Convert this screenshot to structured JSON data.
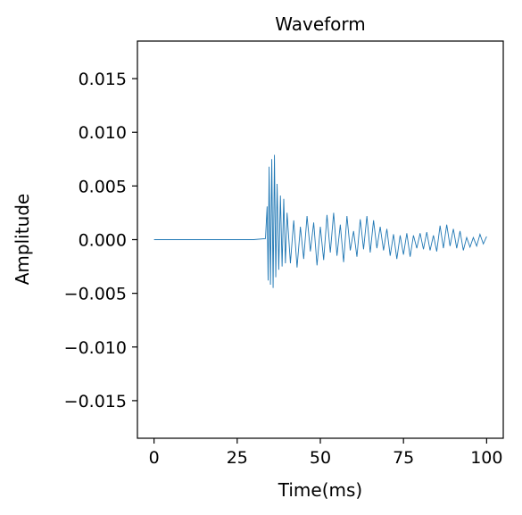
{
  "chart_data": {
    "type": "line",
    "title": "Waveform",
    "xlabel": "Time(ms)",
    "ylabel": "Amplitude",
    "xlim": [
      -5,
      105
    ],
    "ylim": [
      -0.0185,
      0.0185
    ],
    "x_ticks": [
      0,
      25,
      50,
      75,
      100
    ],
    "x_tick_labels": [
      "0",
      "25",
      "50",
      "75",
      "100"
    ],
    "y_ticks": [
      0.015,
      0.01,
      0.005,
      0.0,
      -0.005,
      -0.01,
      -0.015
    ],
    "y_tick_labels": [
      "0.015",
      "0.010",
      "0.005",
      "0.000",
      "−0.005",
      "−0.010",
      "−0.015"
    ],
    "grid": false,
    "line_color": "#1f77b4",
    "series": [
      {
        "x": [
          0,
          5,
          10,
          15,
          20,
          25,
          30,
          33.5,
          34.0,
          34.3,
          34.6,
          35.0,
          35.4,
          35.8,
          36.2,
          36.6,
          37.0,
          37.5,
          38.0,
          38.5,
          39.0,
          39.5,
          40.0,
          41.0,
          42.0,
          43.0,
          44.0,
          45.0,
          46.0,
          47.0,
          48.0,
          49.0,
          50.0,
          51.0,
          52.0,
          53.0,
          54.0,
          55.0,
          56.0,
          57.0,
          58.0,
          59.0,
          60.0,
          61.0,
          62.0,
          63.0,
          64.0,
          65.0,
          66.0,
          67.0,
          68.0,
          69.0,
          70.0,
          71.0,
          72.0,
          73.0,
          74.0,
          75.0,
          76.0,
          77.0,
          78.0,
          79.0,
          80.0,
          81.0,
          82.0,
          83.0,
          84.0,
          85.0,
          86.0,
          87.0,
          88.0,
          89.0,
          90.0,
          91.0,
          92.0,
          93.0,
          94.0,
          95.0,
          96.0,
          97.0,
          98.0,
          99.0,
          100.0
        ],
        "y": [
          0.0,
          0.0,
          0.0,
          0.0,
          0.0,
          0.0,
          0.0,
          0.0001,
          0.0031,
          -0.0038,
          0.0068,
          -0.0042,
          0.0075,
          -0.0045,
          0.0079,
          -0.0035,
          0.0052,
          -0.0028,
          0.0041,
          -0.0025,
          0.0038,
          -0.0022,
          0.0025,
          -0.0022,
          0.0018,
          -0.0026,
          0.0012,
          -0.0018,
          0.0022,
          -0.0011,
          0.0016,
          -0.0024,
          0.0012,
          -0.0019,
          0.0023,
          -0.0012,
          0.0025,
          -0.0015,
          0.0014,
          -0.0021,
          0.0022,
          -0.001,
          0.0008,
          -0.0016,
          0.0019,
          -0.0009,
          0.0022,
          -0.0012,
          0.0018,
          -0.0008,
          0.0012,
          -0.001,
          0.001,
          -0.0015,
          0.0005,
          -0.0018,
          0.0004,
          -0.0014,
          0.0006,
          -0.0016,
          0.0004,
          -0.0008,
          0.0006,
          -0.0009,
          0.0007,
          -0.001,
          0.0004,
          -0.0011,
          0.0013,
          -0.0008,
          0.0014,
          -0.0006,
          0.001,
          -0.0008,
          0.0008,
          -0.001,
          0.0002,
          -0.0007,
          0.0002,
          -0.0006,
          0.0005,
          -0.0004,
          0.0003
        ]
      }
    ]
  }
}
